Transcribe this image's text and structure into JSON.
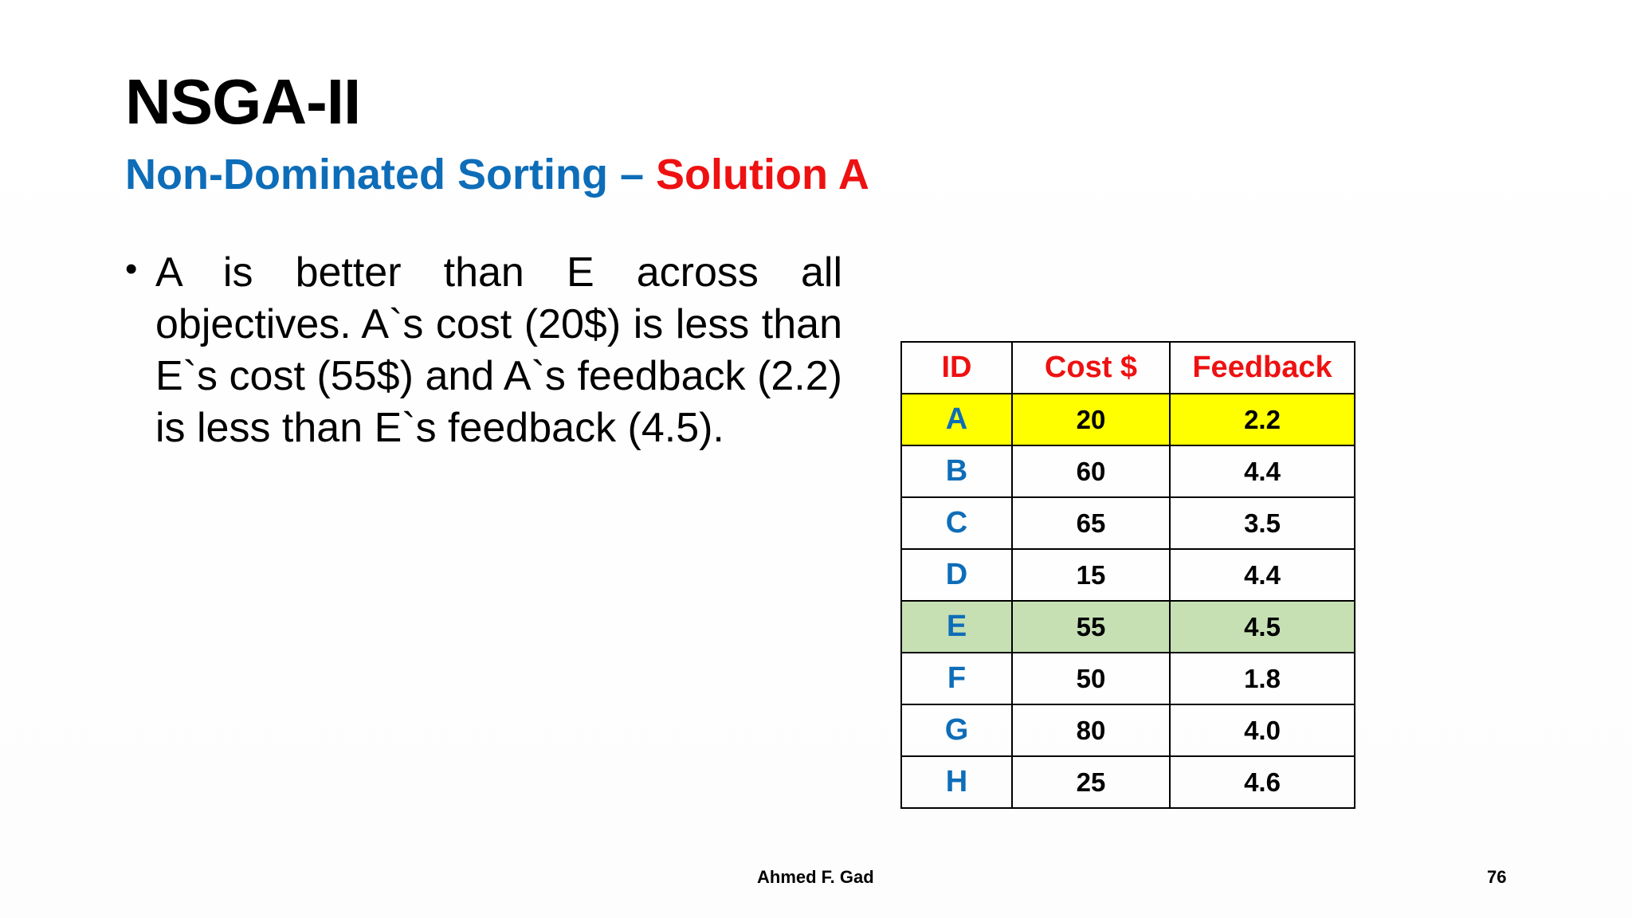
{
  "slide": {
    "title": "NSGA-II",
    "subtitle_part1": "Non-Dominated Sorting – ",
    "subtitle_part2": "Solution A",
    "bullet_symbol": "•",
    "bullet_text": "A is better than E across all objectives. A`s cost (20$) is less than E`s cost (55$) and A`s feedback (2.2) is less than E`s feedback (4.5).",
    "colors": {
      "subtitle_blue": "#0e6db8",
      "subtitle_red": "#ee1111",
      "highlight_a": "#ffff00",
      "highlight_e": "#c6e0b4"
    }
  },
  "table": {
    "headers": [
      "ID",
      "Cost $",
      "Feedback"
    ],
    "rows": [
      {
        "id": "A",
        "cost": "20",
        "feedback": "2.2"
      },
      {
        "id": "B",
        "cost": "60",
        "feedback": "4.4"
      },
      {
        "id": "C",
        "cost": "65",
        "feedback": "3.5"
      },
      {
        "id": "D",
        "cost": "15",
        "feedback": "4.4"
      },
      {
        "id": "E",
        "cost": "55",
        "feedback": "4.5"
      },
      {
        "id": "F",
        "cost": "50",
        "feedback": "1.8"
      },
      {
        "id": "G",
        "cost": "80",
        "feedback": "4.0"
      },
      {
        "id": "H",
        "cost": "25",
        "feedback": "4.6"
      }
    ]
  },
  "footer": {
    "author": "Ahmed F. Gad",
    "page_number": "76"
  }
}
